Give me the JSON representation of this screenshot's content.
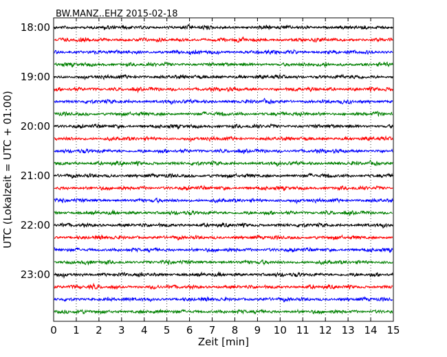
{
  "chart_data": {
    "type": "line",
    "title": "BW.MANZ..EHZ 2015-02-18",
    "xlabel": "Zeit  [min]",
    "ylabel": "UTC (Lokalzeit = UTC + 01:00)",
    "xlim": [
      0,
      15
    ],
    "x_ticks": [
      0,
      1,
      2,
      3,
      4,
      5,
      6,
      7,
      8,
      9,
      10,
      11,
      12,
      13,
      14,
      15
    ],
    "x_tick_labels": [
      "0",
      "1",
      "2",
      "3",
      "4",
      "5",
      "6",
      "7",
      "8",
      "9",
      "10",
      "11",
      "12",
      "13",
      "14",
      "15"
    ],
    "x_grid": "dotted",
    "y_tick_labels": [
      "18:00",
      "19:00",
      "20:00",
      "21:00",
      "22:00",
      "23:00"
    ],
    "trace_colors": [
      "#000000",
      "#ff0000",
      "#0000ff",
      "#008000"
    ],
    "traces": [
      {
        "time": "18:00",
        "color": "#000000"
      },
      {
        "time": "18:15",
        "color": "#ff0000"
      },
      {
        "time": "18:30",
        "color": "#0000ff"
      },
      {
        "time": "18:45",
        "color": "#008000"
      },
      {
        "time": "19:00",
        "color": "#000000"
      },
      {
        "time": "19:15",
        "color": "#ff0000"
      },
      {
        "time": "19:30",
        "color": "#0000ff"
      },
      {
        "time": "19:45",
        "color": "#008000"
      },
      {
        "time": "20:00",
        "color": "#000000"
      },
      {
        "time": "20:15",
        "color": "#ff0000"
      },
      {
        "time": "20:30",
        "color": "#0000ff"
      },
      {
        "time": "20:45",
        "color": "#008000"
      },
      {
        "time": "21:00",
        "color": "#000000"
      },
      {
        "time": "21:15",
        "color": "#ff0000"
      },
      {
        "time": "21:30",
        "color": "#0000ff"
      },
      {
        "time": "21:45",
        "color": "#008000"
      },
      {
        "time": "22:00",
        "color": "#000000"
      },
      {
        "time": "22:15",
        "color": "#ff0000"
      },
      {
        "time": "22:30",
        "color": "#0000ff"
      },
      {
        "time": "22:45",
        "color": "#008000"
      },
      {
        "time": "23:00",
        "color": "#000000"
      },
      {
        "time": "23:15",
        "color": "#ff0000"
      },
      {
        "time": "23:30",
        "color": "#0000ff"
      },
      {
        "time": "23:45",
        "color": "#008000"
      }
    ]
  }
}
